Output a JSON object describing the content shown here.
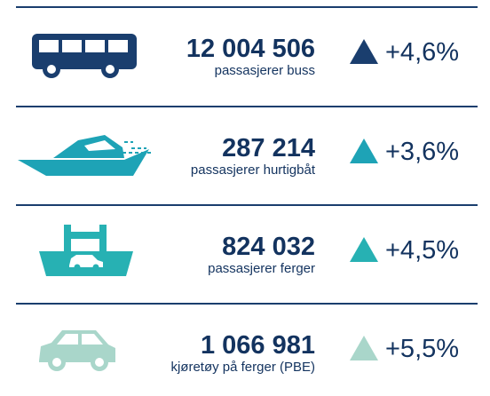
{
  "rows": [
    {
      "value": "12 004 506",
      "label": "passasjerer buss",
      "change": "+4,6%",
      "color": "#1a3e6e"
    },
    {
      "value": "287 214",
      "label": "passasjerer hurtigbåt",
      "change": "+3,6%",
      "color": "#1ea3b6"
    },
    {
      "value": "824 032",
      "label": "passasjerer ferger",
      "change": "+4,5%",
      "color": "#27b1b3"
    },
    {
      "value": "1 066 981",
      "label": "kjøretøy på ferger (PBE)",
      "change": "+5,5%",
      "color": "#a9d6ca"
    }
  ]
}
